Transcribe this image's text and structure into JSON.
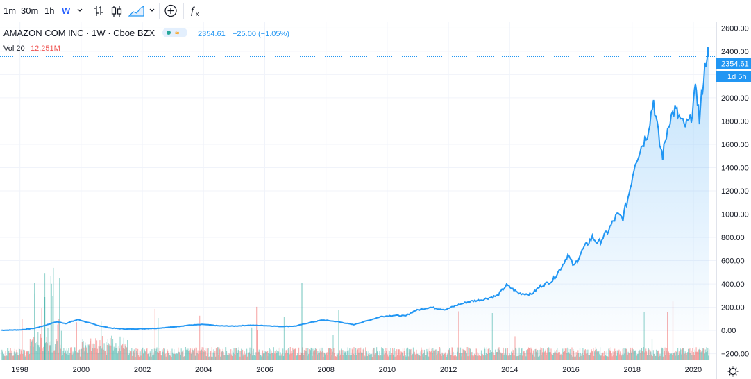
{
  "toolbar": {
    "intervals": [
      "1m",
      "30m",
      "1h",
      "W"
    ],
    "active_interval": "W",
    "chart_types": [
      "bars-icon",
      "candles-icon",
      "area-icon"
    ],
    "indicators_icon": "plus-circle-icon",
    "function_icon": "fx-icon"
  },
  "legend": {
    "symbol": "AMAZON COM INC · 1W · Cboe BZX",
    "price": "2354.61",
    "change": "−25.00 (−1.05%)",
    "vol_label": "Vol 20",
    "vol_value": "12.251M"
  },
  "price_tag": {
    "value": "2354.61",
    "countdown": "1d 5h"
  },
  "colors": {
    "line": "#2196f3",
    "up_volume": "#26a69a",
    "down_volume": "#ef5350",
    "grid": "#f0f3fa",
    "price_tag": "#2196f3"
  },
  "chart_data": {
    "type": "area",
    "title": "AMAZON COM INC",
    "ylim": [
      -250,
      2650
    ],
    "xlim": [
      1997.35,
      2020.75
    ],
    "y_ticks": [
      "2600.00",
      "2400.00",
      "2200.00",
      "2000.00",
      "1800.00",
      "1600.00",
      "1400.00",
      "1200.00",
      "1000.00",
      "800.00",
      "600.00",
      "400.00",
      "200.00",
      "0.00",
      "−200.00"
    ],
    "x_ticks": [
      "1998",
      "2000",
      "2002",
      "2004",
      "2006",
      "2008",
      "2010",
      "2012",
      "2014",
      "2016",
      "2018",
      "2020"
    ],
    "grid": true,
    "series": [
      {
        "values_xy": [
          [
            1997.4,
            2
          ],
          [
            1998.0,
            5
          ],
          [
            1998.5,
            20
          ],
          [
            1998.9,
            50
          ],
          [
            1999.2,
            75
          ],
          [
            1999.5,
            60
          ],
          [
            1999.9,
            95
          ],
          [
            2000.2,
            70
          ],
          [
            2000.6,
            40
          ],
          [
            2001.0,
            20
          ],
          [
            2001.5,
            12
          ],
          [
            2002.0,
            15
          ],
          [
            2002.5,
            20
          ],
          [
            2003.0,
            30
          ],
          [
            2003.5,
            45
          ],
          [
            2004.0,
            52
          ],
          [
            2004.5,
            40
          ],
          [
            2005.0,
            38
          ],
          [
            2005.5,
            45
          ],
          [
            2006.0,
            42
          ],
          [
            2006.5,
            35
          ],
          [
            2007.0,
            38
          ],
          [
            2007.5,
            70
          ],
          [
            2007.9,
            90
          ],
          [
            2008.4,
            75
          ],
          [
            2008.9,
            50
          ],
          [
            2009.3,
            80
          ],
          [
            2009.8,
            120
          ],
          [
            2010.2,
            130
          ],
          [
            2010.6,
            125
          ],
          [
            2010.9,
            170
          ],
          [
            2011.4,
            200
          ],
          [
            2011.9,
            180
          ],
          [
            2012.3,
            220
          ],
          [
            2012.7,
            250
          ],
          [
            2013.1,
            265
          ],
          [
            2013.6,
            300
          ],
          [
            2013.9,
            390
          ],
          [
            2014.3,
            320
          ],
          [
            2014.7,
            310
          ],
          [
            2015.0,
            380
          ],
          [
            2015.4,
            430
          ],
          [
            2015.7,
            550
          ],
          [
            2015.9,
            650
          ],
          [
            2016.1,
            550
          ],
          [
            2016.4,
            700
          ],
          [
            2016.7,
            800
          ],
          [
            2016.9,
            750
          ],
          [
            2017.2,
            850
          ],
          [
            2017.5,
            990
          ],
          [
            2017.7,
            970
          ],
          [
            2017.9,
            1180
          ],
          [
            2018.1,
            1450
          ],
          [
            2018.3,
            1580
          ],
          [
            2018.5,
            1700
          ],
          [
            2018.7,
            1980
          ],
          [
            2018.9,
            1600
          ],
          [
            2019.0,
            1500
          ],
          [
            2019.2,
            1800
          ],
          [
            2019.4,
            1900
          ],
          [
            2019.5,
            1850
          ],
          [
            2019.7,
            1750
          ],
          [
            2019.9,
            1800
          ],
          [
            2020.0,
            1950
          ],
          [
            2020.1,
            2100
          ],
          [
            2020.2,
            1800
          ],
          [
            2020.3,
            2100
          ],
          [
            2020.45,
            2400
          ],
          [
            2020.5,
            2354.61
          ]
        ]
      }
    ],
    "last_value": 2354.61
  }
}
